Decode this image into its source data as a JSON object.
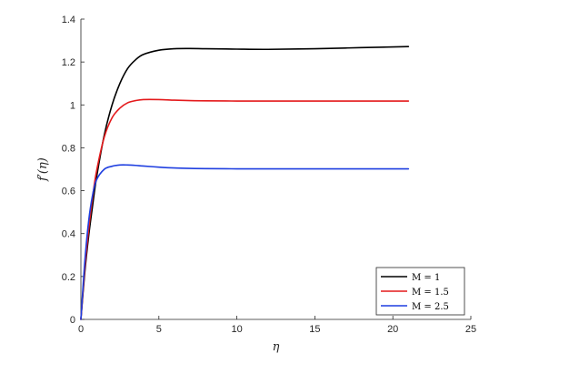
{
  "chart_data": {
    "type": "line",
    "title": "",
    "xlabel": "η",
    "ylabel": "f′(η)",
    "xlim": [
      0,
      25
    ],
    "ylim": [
      0,
      1.4
    ],
    "xticks": [
      0,
      5,
      10,
      15,
      20,
      25
    ],
    "xtick_labels": [
      "0",
      "5",
      "10",
      "15",
      "20",
      "25"
    ],
    "yticks": [
      0,
      0.2,
      0.4,
      0.6,
      0.8,
      1.0,
      1.2,
      1.4
    ],
    "ytick_labels": [
      "0",
      "0.2",
      "0.4",
      "0.6",
      "0.8",
      "1",
      "1.2",
      "1.4"
    ],
    "grid": false,
    "legend_position": "bottom-right",
    "x": [
      0,
      0.25,
      0.5,
      0.75,
      1,
      1.5,
      2,
      2.5,
      3,
      3.5,
      4,
      5,
      6,
      7,
      8,
      10,
      12,
      15,
      18,
      21
    ],
    "series": [
      {
        "name": "M = 1",
        "color": "#000000",
        "values": [
          0,
          0.22,
          0.39,
          0.53,
          0.66,
          0.86,
          1.0,
          1.1,
          1.17,
          1.21,
          1.235,
          1.255,
          1.262,
          1.263,
          1.262,
          1.26,
          1.259,
          1.262,
          1.267,
          1.272
        ]
      },
      {
        "name": "M = 1.5",
        "color": "#e41a1c",
        "values": [
          0,
          0.24,
          0.42,
          0.57,
          0.69,
          0.85,
          0.94,
          0.985,
          1.01,
          1.02,
          1.025,
          1.025,
          1.022,
          1.02,
          1.019,
          1.018,
          1.018,
          1.018,
          1.018,
          1.018
        ]
      },
      {
        "name": "M = 2.5",
        "color": "#1f3fe0",
        "values": [
          0,
          0.27,
          0.46,
          0.58,
          0.65,
          0.7,
          0.714,
          0.72,
          0.72,
          0.718,
          0.715,
          0.71,
          0.706,
          0.704,
          0.703,
          0.702,
          0.702,
          0.702,
          0.702,
          0.702
        ]
      }
    ]
  }
}
